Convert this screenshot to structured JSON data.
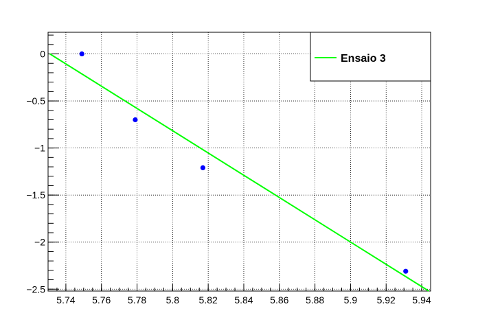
{
  "chart_data": {
    "type": "scatter",
    "title": "",
    "xlabel": "",
    "ylabel": "",
    "xlim": [
      5.73,
      5.945
    ],
    "ylim": [
      -2.52,
      0.23
    ],
    "grid": true,
    "legend_position": "top-right",
    "x_ticks": [
      5.74,
      5.76,
      5.78,
      5.8,
      5.82,
      5.84,
      5.86,
      5.88,
      5.9,
      5.92,
      5.94
    ],
    "x_tick_labels": [
      "5.74",
      "5.76",
      "5.78",
      "5.8",
      "5.82",
      "5.84",
      "5.86",
      "5.88",
      "5.9",
      "5.92",
      "5.94"
    ],
    "y_ticks": [
      0,
      -0.5,
      -1,
      -1.5,
      -2,
      -2.5
    ],
    "y_tick_labels": [
      "0",
      "−0.5",
      "−1",
      "−1.5",
      "−2",
      "−2.5"
    ],
    "points": {
      "name": "",
      "color": "#0000ff",
      "x": [
        5.749,
        5.779,
        5.817,
        5.931
      ],
      "y": [
        0.0,
        -0.7,
        -1.21,
        -2.31
      ]
    },
    "fit_line": {
      "name": "Ensaio 3",
      "color": "#00ff00",
      "x": [
        5.731,
        5.944
      ],
      "y": [
        0.0,
        -2.52
      ]
    }
  }
}
